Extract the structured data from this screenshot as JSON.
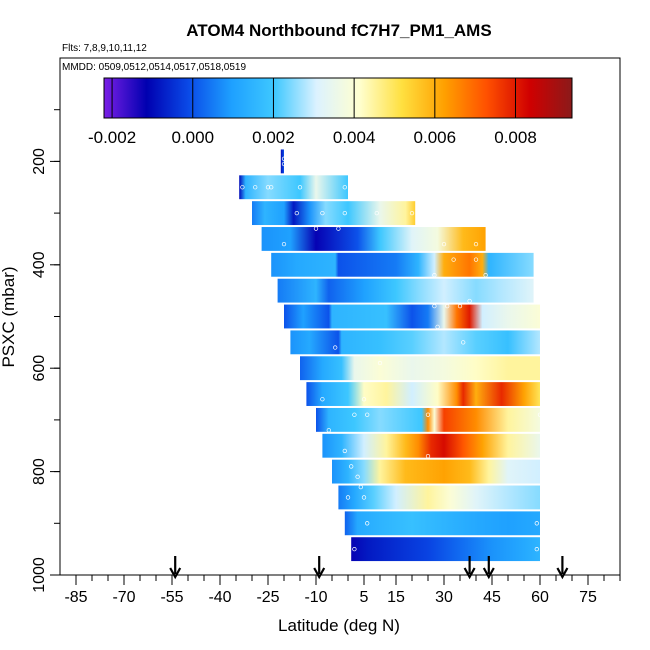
{
  "chart_data": {
    "type": "heatmap",
    "title": "ATOM4 Northbound fC7H7_PM1_AMS",
    "subtitle_flights": "Flts: 7,8,9,10,11,12",
    "subtitle_dates": "MMDD: 0509,0512,0514,0517,0518,0519",
    "xlabel": "Latitude (deg N)",
    "ylabel": "PSXC (mbar)",
    "xlim": [
      -90,
      85
    ],
    "ylim": [
      1000,
      0
    ],
    "x_ticks": [
      -85,
      -70,
      -55,
      -40,
      -25,
      -10,
      5,
      15,
      30,
      45,
      60,
      75
    ],
    "y_ticks": [
      200,
      400,
      600,
      800,
      1000
    ],
    "colorbar": {
      "range": [
        -0.0022,
        0.0094
      ],
      "ticks": [
        -0.002,
        0.0,
        0.002,
        0.004,
        0.006,
        0.008
      ],
      "tick_labels": [
        "-0.002",
        "0.000",
        "0.002",
        "0.004",
        "0.006",
        "0.008"
      ],
      "colors": [
        "#7a1fe6",
        "#0000b0",
        "#0a4be8",
        "#1ea0ff",
        "#3ec8ff",
        "#dcf2ff",
        "#ffffd0",
        "#ffe040",
        "#ffa000",
        "#ff5000",
        "#d00000",
        "#8b1a1a"
      ]
    },
    "arrows_latitude": [
      -54,
      -9,
      38,
      44,
      67
    ],
    "rows": [
      {
        "p": 200,
        "x0": -21,
        "x1": -20,
        "stops": [
          [
            -21,
            -0.001
          ],
          [
            -20,
            0.0
          ]
        ]
      },
      {
        "p": 250,
        "x0": -34,
        "x1": 0,
        "stops": [
          [
            -34,
            -0.001
          ],
          [
            -32,
            0.0015
          ],
          [
            -25,
            0.0025
          ],
          [
            -15,
            0.002
          ],
          [
            -10,
            0.0035
          ],
          [
            0,
            0.002
          ]
        ]
      },
      {
        "p": 300,
        "x0": -30,
        "x1": 21,
        "stops": [
          [
            -30,
            0.0005
          ],
          [
            -26,
            0.0015
          ],
          [
            -20,
            0.001
          ],
          [
            -17,
            -0.0008
          ],
          [
            -12,
            0.0008
          ],
          [
            -7,
            0.0025
          ],
          [
            0,
            0.002
          ],
          [
            10,
            0.0035
          ],
          [
            18,
            0.0045
          ],
          [
            21,
            0.0055
          ]
        ]
      },
      {
        "p": 350,
        "x0": -27,
        "x1": 43,
        "stops": [
          [
            -27,
            0.0008
          ],
          [
            -18,
            0.001
          ],
          [
            -10,
            -0.0012
          ],
          [
            3,
            0.0
          ],
          [
            10,
            0.002
          ],
          [
            20,
            0.0032
          ],
          [
            28,
            0.0038
          ],
          [
            36,
            0.0058
          ],
          [
            43,
            0.0062
          ]
        ]
      },
      {
        "p": 400,
        "x0": -24,
        "x1": 58,
        "stops": [
          [
            -24,
            0.0008
          ],
          [
            -16,
            0.0012
          ],
          [
            -4,
            0.0015
          ],
          [
            -3,
            0.0
          ],
          [
            15,
            0.0005
          ],
          [
            22,
            0.0015
          ],
          [
            27,
            0.003
          ],
          [
            30,
            0.006
          ],
          [
            38,
            0.0068
          ],
          [
            42,
            0.006
          ],
          [
            44,
            0.0015
          ],
          [
            58,
            0.0025
          ]
        ]
      },
      {
        "p": 450,
        "x0": -22,
        "x1": 58,
        "stops": [
          [
            -22,
            0.0005
          ],
          [
            -10,
            0.0015
          ],
          [
            -6,
            0.0002
          ],
          [
            5,
            0.001
          ],
          [
            15,
            0.002
          ],
          [
            22,
            0.0025
          ],
          [
            30,
            0.003
          ],
          [
            40,
            0.0025
          ],
          [
            48,
            0.0028
          ],
          [
            58,
            0.0032
          ]
        ]
      },
      {
        "p": 500,
        "x0": -20,
        "x1": 60,
        "stops": [
          [
            -20,
            0.0
          ],
          [
            -14,
            0.001
          ],
          [
            -6,
            0.0
          ],
          [
            -5,
            0.0015
          ],
          [
            12,
            0.0018
          ],
          [
            20,
            0.0
          ],
          [
            25,
            0.0005
          ],
          [
            30,
            0.0035
          ],
          [
            34,
            0.0068
          ],
          [
            38,
            0.008
          ],
          [
            42,
            0.003
          ],
          [
            50,
            0.0035
          ],
          [
            60,
            0.004
          ]
        ]
      },
      {
        "p": 550,
        "x0": -18,
        "x1": 60,
        "stops": [
          [
            -18,
            0.0008
          ],
          [
            -12,
            0.0012
          ],
          [
            -3,
            0.0
          ],
          [
            -2,
            0.0015
          ],
          [
            10,
            0.0018
          ],
          [
            20,
            0.0022
          ],
          [
            30,
            0.0028
          ],
          [
            40,
            0.0022
          ],
          [
            50,
            0.0018
          ],
          [
            60,
            0.0028
          ]
        ]
      },
      {
        "p": 600,
        "x0": -15,
        "x1": 60,
        "stops": [
          [
            -15,
            0.0002
          ],
          [
            -8,
            0.0012
          ],
          [
            -2,
            0.0018
          ],
          [
            2,
            0.0035
          ],
          [
            10,
            0.004
          ],
          [
            20,
            0.0035
          ],
          [
            30,
            0.0038
          ],
          [
            40,
            0.0042
          ],
          [
            50,
            0.0045
          ],
          [
            60,
            0.0045
          ]
        ]
      },
      {
        "p": 650,
        "x0": -13,
        "x1": 60,
        "stops": [
          [
            -13,
            0.0
          ],
          [
            -8,
            0.0012
          ],
          [
            0,
            0.002
          ],
          [
            5,
            0.0042
          ],
          [
            12,
            0.0045
          ],
          [
            20,
            0.003
          ],
          [
            28,
            0.0042
          ],
          [
            34,
            0.0065
          ],
          [
            36,
            0.0078
          ],
          [
            40,
            0.006
          ],
          [
            48,
            0.0078
          ],
          [
            55,
            0.0062
          ],
          [
            60,
            0.005
          ]
        ]
      },
      {
        "p": 700,
        "x0": -10,
        "x1": 60,
        "stops": [
          [
            -10,
            0.0
          ],
          [
            -6,
            0.0015
          ],
          [
            2,
            0.002
          ],
          [
            10,
            0.0025
          ],
          [
            18,
            0.0022
          ],
          [
            23,
            0.002
          ],
          [
            25,
            0.0065
          ],
          [
            27,
            0.004
          ],
          [
            30,
            0.0075
          ],
          [
            40,
            0.0065
          ],
          [
            50,
            0.0045
          ],
          [
            60,
            0.0038
          ]
        ]
      },
      {
        "p": 750,
        "x0": -8,
        "x1": 60,
        "stops": [
          [
            -8,
            0.0008
          ],
          [
            -2,
            0.0015
          ],
          [
            5,
            0.003
          ],
          [
            12,
            0.0045
          ],
          [
            18,
            0.0058
          ],
          [
            22,
            0.0065
          ],
          [
            26,
            0.0078
          ],
          [
            30,
            0.0082
          ],
          [
            36,
            0.0072
          ],
          [
            42,
            0.0062
          ],
          [
            50,
            0.0045
          ],
          [
            60,
            0.0035
          ]
        ]
      },
      {
        "p": 800,
        "x0": -5,
        "x1": 60,
        "stops": [
          [
            -5,
            0.0008
          ],
          [
            0,
            0.0015
          ],
          [
            5,
            0.0025
          ],
          [
            10,
            0.0045
          ],
          [
            18,
            0.0058
          ],
          [
            30,
            0.0062
          ],
          [
            38,
            0.0058
          ],
          [
            44,
            0.0045
          ],
          [
            50,
            0.0032
          ],
          [
            60,
            0.003
          ]
        ]
      },
      {
        "p": 850,
        "x0": -3,
        "x1": 60,
        "stops": [
          [
            -3,
            0.0005
          ],
          [
            2,
            0.0012
          ],
          [
            8,
            0.0022
          ],
          [
            15,
            0.003
          ],
          [
            25,
            0.0045
          ],
          [
            32,
            0.004
          ],
          [
            40,
            0.0032
          ],
          [
            50,
            0.0028
          ],
          [
            60,
            0.0025
          ]
        ]
      },
      {
        "p": 900,
        "x0": -1,
        "x1": 60,
        "stops": [
          [
            -1,
            0.0002
          ],
          [
            3,
            0.0012
          ],
          [
            10,
            0.0015
          ],
          [
            20,
            0.0018
          ],
          [
            30,
            0.0015
          ],
          [
            40,
            0.0012
          ],
          [
            50,
            0.001
          ],
          [
            60,
            0.0012
          ]
        ]
      },
      {
        "p": 950,
        "x0": 1,
        "x1": 60,
        "stops": [
          [
            1,
            -0.0012
          ],
          [
            6,
            -0.0008
          ],
          [
            15,
            -0.0005
          ],
          [
            25,
            -0.0002
          ],
          [
            35,
            0.0003
          ],
          [
            45,
            0.0008
          ],
          [
            55,
            0.0012
          ],
          [
            60,
            0.0015
          ]
        ]
      }
    ],
    "points": [
      [
        -20,
        195
      ],
      [
        -20,
        205
      ],
      [
        -33,
        250
      ],
      [
        -29,
        250
      ],
      [
        -25,
        250
      ],
      [
        -24,
        250
      ],
      [
        -15,
        250
      ],
      [
        -1,
        250
      ],
      [
        -16,
        300
      ],
      [
        -8,
        300
      ],
      [
        -1,
        300
      ],
      [
        9,
        300
      ],
      [
        20,
        300
      ],
      [
        -10,
        330
      ],
      [
        -3,
        330
      ],
      [
        -20,
        360
      ],
      [
        30,
        360
      ],
      [
        40,
        360
      ],
      [
        33,
        390
      ],
      [
        40,
        390
      ],
      [
        27,
        420
      ],
      [
        43,
        420
      ],
      [
        27,
        480
      ],
      [
        31,
        480
      ],
      [
        35,
        480
      ],
      [
        38,
        470
      ],
      [
        28,
        520
      ],
      [
        36,
        550
      ],
      [
        -4,
        560
      ],
      [
        10,
        590
      ],
      [
        5,
        660
      ],
      [
        -8,
        660
      ],
      [
        2,
        690
      ],
      [
        6,
        690
      ],
      [
        25,
        690
      ],
      [
        60,
        690
      ],
      [
        -6,
        720
      ],
      [
        -1,
        760
      ],
      [
        25,
        770
      ],
      [
        1,
        790
      ],
      [
        3,
        810
      ],
      [
        4,
        830
      ],
      [
        5,
        850
      ],
      [
        0,
        850
      ],
      [
        6,
        900
      ],
      [
        59,
        900
      ],
      [
        2,
        950
      ],
      [
        59,
        950
      ]
    ]
  }
}
